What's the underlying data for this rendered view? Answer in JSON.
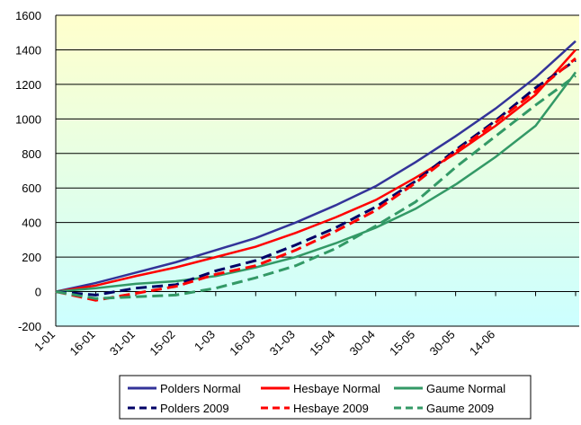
{
  "chart_data": {
    "type": "line",
    "categories": [
      "1-01",
      "16-01",
      "31-01",
      "15-02",
      "1-03",
      "16-03",
      "31-03",
      "15-04",
      "30-04",
      "15-05",
      "30-05",
      "14-06",
      null,
      null
    ],
    "ylim": [
      -200,
      1600
    ],
    "yticks": [
      -200,
      0,
      200,
      400,
      600,
      800,
      1000,
      1200,
      1400,
      1600
    ],
    "grid": true,
    "series": [
      {
        "name": "Polders Normal",
        "color": "#333399",
        "dashed": false,
        "values": [
          0,
          50,
          110,
          170,
          240,
          310,
          400,
          500,
          610,
          750,
          900,
          1060,
          1240,
          1450
        ]
      },
      {
        "name": "Hesbaye Normal",
        "color": "#ff0000",
        "dashed": false,
        "values": [
          0,
          35,
          90,
          140,
          200,
          260,
          340,
          430,
          530,
          660,
          800,
          960,
          1140,
          1400
        ]
      },
      {
        "name": "Gaume Normal",
        "color": "#339966",
        "dashed": false,
        "values": [
          0,
          20,
          45,
          60,
          90,
          140,
          200,
          280,
          370,
          480,
          620,
          780,
          960,
          1270
        ]
      },
      {
        "name": "Polders 2009",
        "color": "#000066",
        "dashed": true,
        "values": [
          0,
          -20,
          20,
          40,
          120,
          180,
          270,
          370,
          490,
          640,
          820,
          990,
          1180,
          1340
        ]
      },
      {
        "name": "Hesbaye 2009",
        "color": "#ff0000",
        "dashed": true,
        "values": [
          0,
          -50,
          -10,
          30,
          100,
          150,
          240,
          350,
          470,
          630,
          810,
          980,
          1160,
          1350
        ]
      },
      {
        "name": "Gaume 2009",
        "color": "#339966",
        "dashed": true,
        "values": [
          0,
          -40,
          -30,
          -20,
          20,
          80,
          150,
          250,
          380,
          520,
          720,
          900,
          1080,
          1250
        ]
      }
    ],
    "legend": "bottom"
  }
}
